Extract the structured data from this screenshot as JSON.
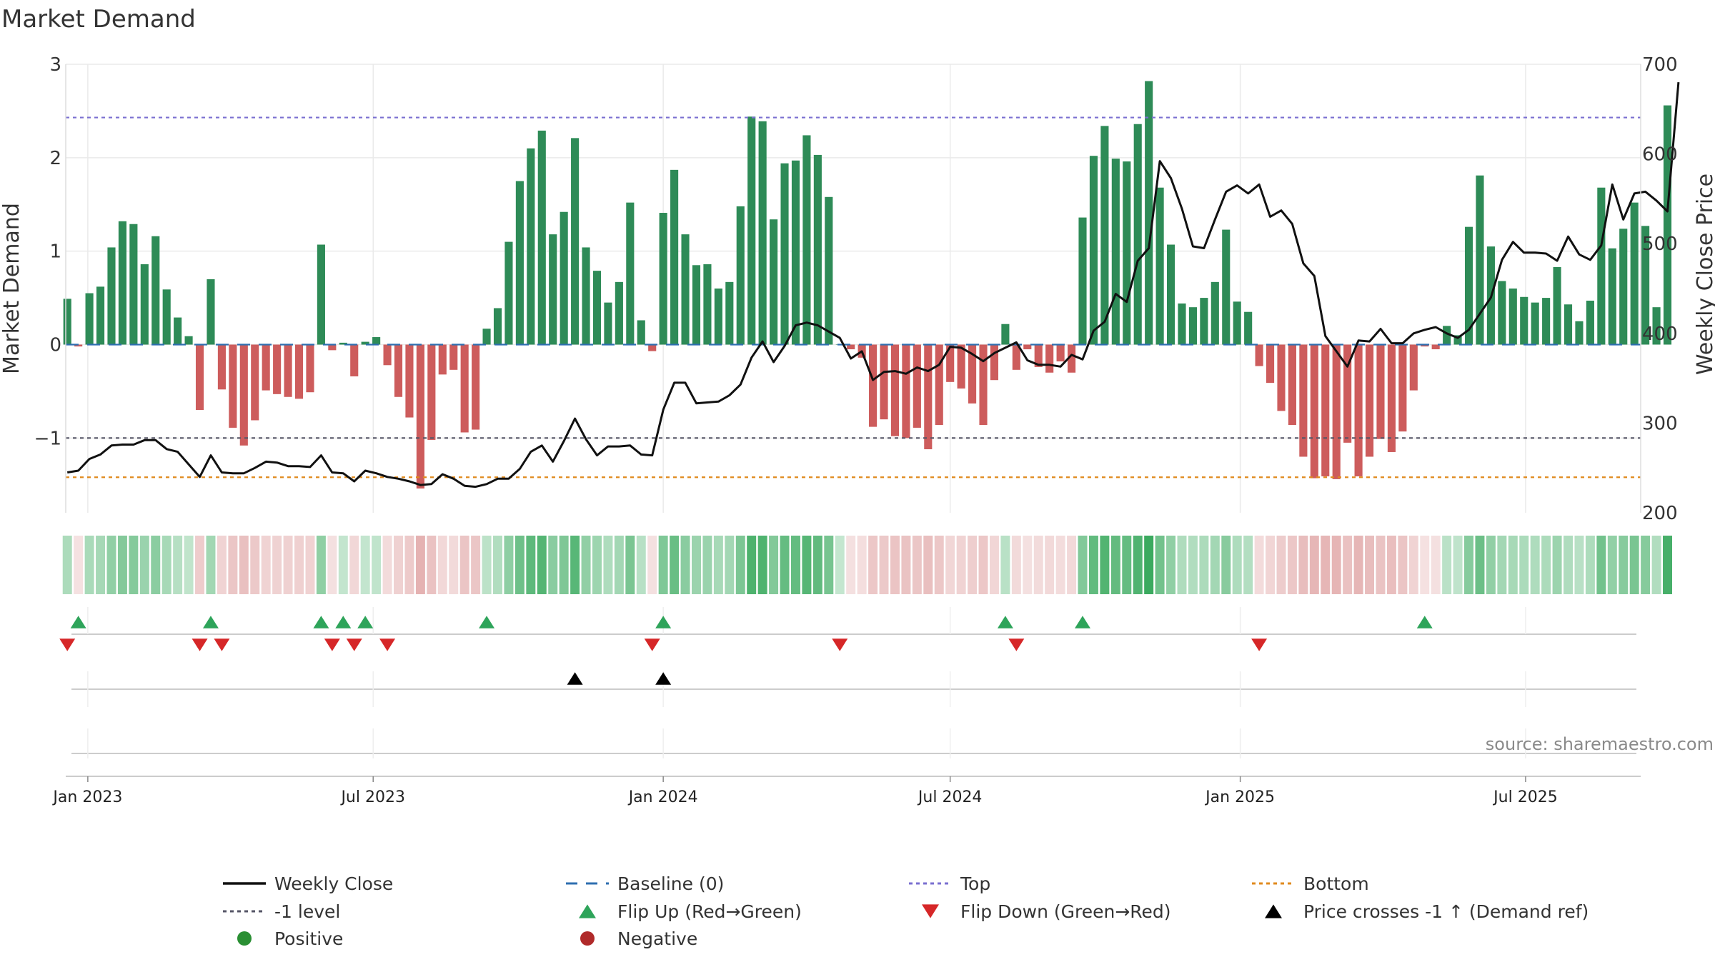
{
  "chart_data": {
    "type": "bar+line",
    "title": "Market Demand",
    "ylabel_left": "Market Demand",
    "ylabel_right": "Weekly Close Price",
    "ylim_left": [
      -1.8,
      3
    ],
    "yticks_left": [
      3,
      2,
      1,
      0,
      -1
    ],
    "ytick_labels_left": [
      "3",
      "2",
      "1",
      "0",
      "−1"
    ],
    "ylim_right": [
      200,
      700
    ],
    "yticks_right": [
      700,
      600,
      500,
      400,
      300,
      200
    ],
    "ytick_labels_right": [
      "700",
      "600",
      "500",
      "400",
      "300",
      "200"
    ],
    "x_start": "2022-12-19",
    "x_week_step_days": 7,
    "x_range": [
      "2022-12-18",
      "2025-09-12"
    ],
    "x_ticks": [
      {
        "date": "2023-01-01",
        "label": "Jan 2023"
      },
      {
        "date": "2023-07-01",
        "label": "Jul 2023"
      },
      {
        "date": "2024-01-01",
        "label": "Jan 2024"
      },
      {
        "date": "2024-07-01",
        "label": "Jul 2024"
      },
      {
        "date": "2025-01-01",
        "label": "Jan 2025"
      },
      {
        "date": "2025-07-01",
        "label": "Jul 2025"
      }
    ],
    "reference_lines": {
      "top": 2.43,
      "bottom": -1.42,
      "minus_one": -1,
      "baseline": 0
    },
    "demand": [
      0.49,
      -0.02,
      0.55,
      0.62,
      1.04,
      1.32,
      1.29,
      0.86,
      1.16,
      0.59,
      0.29,
      0.09,
      -0.7,
      0.7,
      -0.48,
      -0.89,
      -1.08,
      -0.81,
      -0.49,
      -0.53,
      -0.56,
      -0.58,
      -0.51,
      1.07,
      -0.06,
      0.02,
      -0.34,
      0.03,
      0.08,
      -0.22,
      -0.56,
      -0.78,
      -1.54,
      -1.02,
      -0.32,
      -0.27,
      -0.94,
      -0.91,
      0.17,
      0.39,
      1.1,
      1.75,
      2.1,
      2.29,
      1.18,
      1.42,
      2.21,
      1.04,
      0.79,
      0.45,
      0.67,
      1.52,
      0.26,
      -0.07,
      1.41,
      1.87,
      1.18,
      0.85,
      0.86,
      0.6,
      0.67,
      1.48,
      2.44,
      2.39,
      1.34,
      1.94,
      1.97,
      2.24,
      2.03,
      1.58,
      0.0,
      -0.05,
      -0.14,
      -0.88,
      -0.8,
      -0.98,
      -1.0,
      -0.89,
      -1.12,
      -0.86,
      -0.4,
      -0.47,
      -0.63,
      -0.86,
      -0.38,
      0.22,
      -0.27,
      -0.05,
      -0.24,
      -0.3,
      -0.18,
      -0.3,
      1.36,
      2.02,
      2.34,
      1.99,
      1.96,
      2.36,
      2.82,
      1.68,
      1.07,
      0.44,
      0.4,
      0.5,
      0.67,
      1.23,
      0.46,
      0.35,
      -0.23,
      -0.41,
      -0.71,
      -0.86,
      -1.2,
      -1.43,
      -1.41,
      -1.44,
      -1.05,
      -1.41,
      -1.2,
      -1.01,
      -1.15,
      -0.93,
      -0.49,
      -0.02,
      -0.05,
      0.2,
      0.1,
      1.26,
      1.81,
      1.05,
      0.68,
      0.6,
      0.51,
      0.45,
      0.5,
      0.83,
      0.43,
      0.25,
      0.47,
      1.68,
      1.03,
      1.24,
      1.52,
      1.27,
      0.4,
      2.56
    ],
    "close": [
      245,
      247,
      260,
      265,
      275,
      276,
      276,
      281,
      281,
      271,
      268,
      254,
      240,
      264,
      245,
      244,
      244,
      250,
      257,
      256,
      252,
      252,
      251,
      264,
      245,
      244,
      235,
      247,
      244,
      240,
      238,
      235,
      231,
      232,
      243,
      238,
      230,
      229,
      232,
      238,
      238,
      249,
      268,
      275,
      257,
      280,
      305,
      282,
      264,
      274,
      274,
      275,
      265,
      264,
      315,
      345,
      345,
      322,
      323,
      324,
      331,
      343,
      373,
      391,
      368,
      386,
      409,
      412,
      409,
      402,
      395,
      372,
      380,
      348,
      357,
      358,
      355,
      362,
      358,
      365,
      385,
      384,
      377,
      369,
      378,
      384,
      390,
      370,
      365,
      365,
      363,
      376,
      371,
      403,
      413,
      444,
      435,
      481,
      495,
      592,
      573,
      539,
      497,
      495,
      527,
      558,
      565,
      556,
      566,
      530,
      537,
      522,
      478,
      464,
      397,
      380,
      363,
      392,
      391,
      405,
      389,
      389,
      400,
      404,
      407,
      400,
      395,
      404,
      422,
      440,
      482,
      502,
      490,
      490,
      489,
      481,
      508,
      488,
      482,
      498,
      566,
      527,
      556,
      558,
      548,
      536,
      680
    ],
    "flip_up_weeks": [
      1,
      13,
      23,
      25,
      27,
      38,
      54,
      85,
      92,
      123
    ],
    "flip_down_weeks": [
      0,
      12,
      14,
      24,
      26,
      29,
      53,
      70,
      86,
      108
    ],
    "price_cross_weeks": [
      46,
      54
    ],
    "legend": [
      {
        "label": "Weekly Close",
        "symbol": "line",
        "color": "#111111"
      },
      {
        "label": "Baseline (0)",
        "symbol": "dash",
        "color": "#2f6fb0"
      },
      {
        "label": "Top",
        "symbol": "dot",
        "color": "#7a6fd0"
      },
      {
        "label": "Bottom",
        "symbol": "dot",
        "color": "#e08a1e"
      },
      {
        "label": "-1 level",
        "symbol": "dot",
        "color": "#555566"
      },
      {
        "label": "Flip Up (Red→Green)",
        "symbol": "tri-up",
        "color": "#2ea45a"
      },
      {
        "label": "Flip Down (Green→Red)",
        "symbol": "tri-down",
        "color": "#d62728"
      },
      {
        "label": "Price crosses -1 ↑ (Demand ref)",
        "symbol": "tri-up",
        "color": "#000000"
      },
      {
        "label": "Positive",
        "symbol": "circle",
        "color": "#2a8f33"
      },
      {
        "label": "Negative",
        "symbol": "circle",
        "color": "#b02a2a"
      }
    ],
    "source_note": "source: sharemaestro.com"
  },
  "colors": {
    "positive_bar": "#2e8b57",
    "negative_bar": "#cd5c5c",
    "line": "#111111",
    "baseline": "#2f6fb0",
    "top": "#7a6fd0",
    "bottom": "#e08a1e",
    "minus_one": "#555566",
    "flip_up": "#2ea45a",
    "flip_down": "#d62728",
    "cross": "#000000",
    "text": "#333333",
    "grid": "#eaeaea"
  }
}
